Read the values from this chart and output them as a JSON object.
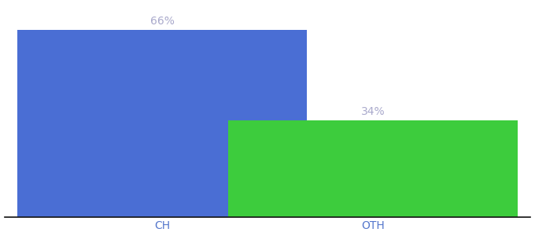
{
  "categories": [
    "CH",
    "OTH"
  ],
  "values": [
    66,
    34
  ],
  "bar_colors": [
    "#4a6ed4",
    "#3dcc3d"
  ],
  "label_color": "#aaaacc",
  "bar_labels": [
    "66%",
    "34%"
  ],
  "ylim": [
    0,
    75
  ],
  "background_color": "#ffffff",
  "label_fontsize": 10,
  "tick_fontsize": 10,
  "tick_color": "#5577cc",
  "bar_width": 0.55,
  "x_positions": [
    0.3,
    0.7
  ],
  "xlim": [
    0.0,
    1.0
  ],
  "spine_color": "#111111"
}
